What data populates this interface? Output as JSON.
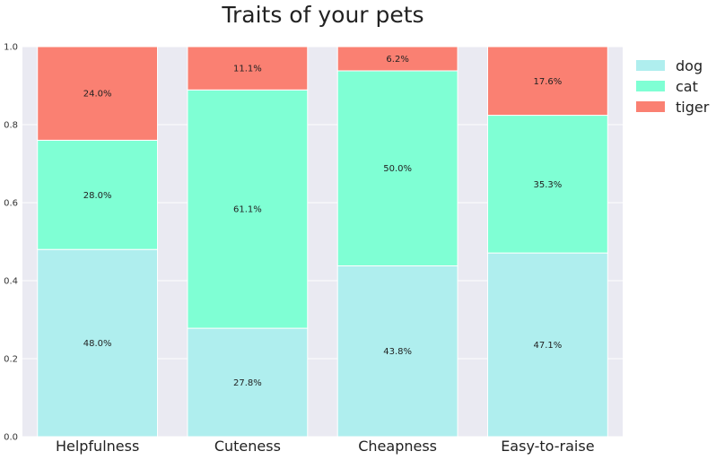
{
  "chart_data": {
    "type": "bar",
    "stacked": true,
    "title": "Traits of your pets",
    "categories": [
      "Helpfulness",
      "Cuteness",
      "Cheapness",
      "Easy-to-raise"
    ],
    "series": [
      {
        "name": "dog",
        "color": "#afeeee",
        "values": [
          0.48,
          0.278,
          0.438,
          0.471
        ],
        "labels": [
          "48.0%",
          "27.8%",
          "43.8%",
          "47.1%"
        ]
      },
      {
        "name": "cat",
        "color": "#7fffd4",
        "values": [
          0.28,
          0.611,
          0.5,
          0.353
        ],
        "labels": [
          "28.0%",
          "61.1%",
          "50.0%",
          "35.3%"
        ]
      },
      {
        "name": "tiger",
        "color": "#fa8072",
        "values": [
          0.24,
          0.111,
          0.062,
          0.176
        ],
        "labels": [
          "24.0%",
          "11.1%",
          "6.2%",
          "17.6%"
        ]
      }
    ],
    "yticks": [
      "0.0",
      "0.2",
      "0.4",
      "0.6",
      "0.8",
      "1.0"
    ],
    "ylim": [
      0,
      1
    ],
    "xlabel": "",
    "ylabel": "",
    "grid": true,
    "legend_position": "outside-top-right",
    "background": "#eaeaf2"
  }
}
